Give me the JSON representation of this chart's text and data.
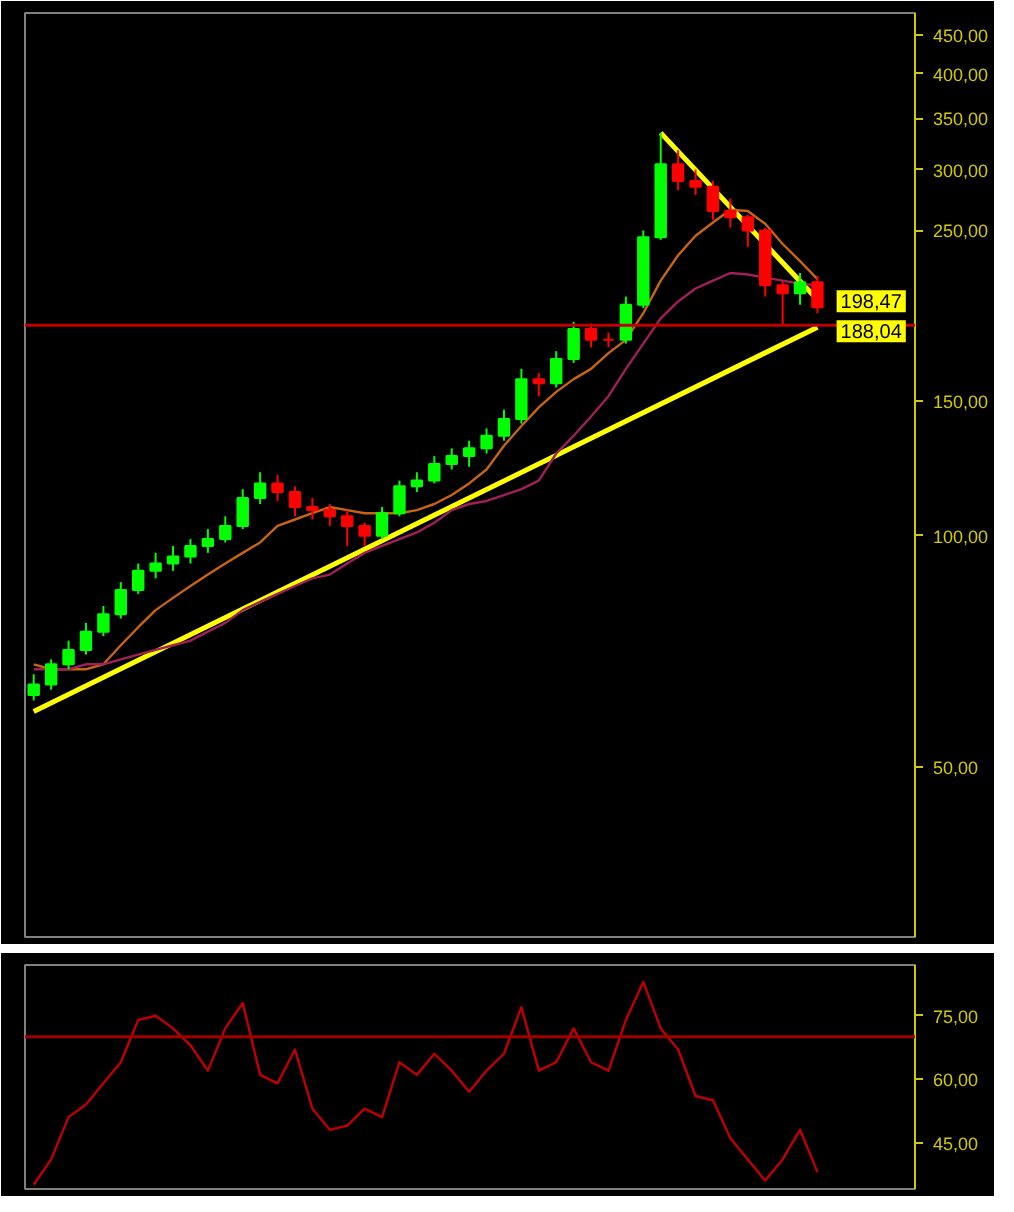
{
  "chart_data": [
    {
      "type": "candlestick",
      "categories": [
        null,
        null,
        null,
        null,
        null,
        null,
        null,
        null,
        null,
        null,
        null,
        null,
        null,
        null,
        null,
        null,
        null,
        null,
        null,
        null,
        null,
        null,
        null,
        null,
        null,
        null,
        null,
        null,
        null,
        null,
        null,
        null,
        null,
        null,
        null,
        null,
        null,
        null,
        null,
        null,
        null,
        null,
        null,
        null,
        null,
        null
      ],
      "ohlc": [
        [
          62,
          66,
          61,
          64
        ],
        [
          64,
          69,
          63,
          68
        ],
        [
          68,
          73,
          67,
          71
        ],
        [
          71,
          77,
          70,
          75
        ],
        [
          75,
          81,
          74,
          79
        ],
        [
          79,
          87,
          78,
          85
        ],
        [
          85,
          92,
          84,
          90
        ],
        [
          90,
          95,
          88,
          92
        ],
        [
          92,
          97,
          90,
          94
        ],
        [
          94,
          99,
          92,
          97
        ],
        [
          97,
          102,
          95,
          99
        ],
        [
          99,
          106,
          98,
          103
        ],
        [
          103,
          115,
          102,
          112
        ],
        [
          112,
          121,
          110,
          117
        ],
        [
          117,
          120,
          111,
          114
        ],
        [
          114,
          116,
          106,
          109
        ],
        [
          109,
          112,
          105,
          108
        ],
        [
          108,
          110,
          103,
          106
        ],
        [
          106,
          108,
          97,
          103
        ],
        [
          103,
          104,
          97,
          100
        ],
        [
          100,
          109,
          99,
          107
        ],
        [
          107,
          118,
          106,
          116
        ],
        [
          116,
          121,
          114,
          118
        ],
        [
          118,
          127,
          117,
          124
        ],
        [
          124,
          130,
          122,
          127
        ],
        [
          127,
          133,
          123,
          130
        ],
        [
          130,
          138,
          128,
          135
        ],
        [
          135,
          146,
          133,
          142
        ],
        [
          142,
          165,
          140,
          160
        ],
        [
          160,
          163,
          152,
          158
        ],
        [
          158,
          174,
          156,
          170
        ],
        [
          170,
          190,
          168,
          186
        ],
        [
          186,
          189,
          176,
          180
        ],
        [
          180,
          184,
          176,
          180
        ],
        [
          180,
          205,
          178,
          200
        ],
        [
          200,
          250,
          198,
          245
        ],
        [
          245,
          335,
          243,
          305
        ],
        [
          305,
          318,
          282,
          290
        ],
        [
          290,
          300,
          278,
          285
        ],
        [
          285,
          290,
          258,
          265
        ],
        [
          265,
          275,
          252,
          260
        ],
        [
          260,
          262,
          238,
          250
        ],
        [
          250,
          252,
          205,
          212
        ],
        [
          212,
          215,
          188,
          207
        ],
        [
          207,
          220,
          200,
          214
        ],
        [
          214,
          218,
          195,
          198.47
        ]
      ],
      "colors": [
        "#00ff00",
        "#00ff00",
        "#00ff00",
        "#00ff00",
        "#00ff00",
        "#00ff00",
        "#00ff00",
        "#00ff00",
        "#00ff00",
        "#00ff00",
        "#00ff00",
        "#00ff00",
        "#00ff00",
        "#00ff00",
        "#ff0000",
        "#ff0000",
        "#ff0000",
        "#ff0000",
        "#ff0000",
        "#ff0000",
        "#00ff00",
        "#00ff00",
        "#00ff00",
        "#00ff00",
        "#00ff00",
        "#00ff00",
        "#00ff00",
        "#00ff00",
        "#00ff00",
        "#ff0000",
        "#00ff00",
        "#00ff00",
        "#ff0000",
        "#ff0000",
        "#00ff00",
        "#00ff00",
        "#00ff00",
        "#ff0000",
        "#ff0000",
        "#ff0000",
        "#ff0000",
        "#ff0000",
        "#ff0000",
        "#ff0000",
        "#00ff00",
        "#ff0000"
      ],
      "series": [
        {
          "type": "line",
          "color": "#c86414",
          "values": [
            68,
            67,
            67,
            67,
            68,
            72,
            76,
            80,
            83,
            86,
            89,
            92,
            95,
            98,
            103,
            105,
            107,
            109,
            108,
            107,
            107,
            107,
            108,
            110,
            113,
            117,
            122,
            131,
            139,
            147,
            154,
            160,
            165,
            173,
            180,
            195,
            215,
            232,
            246,
            256,
            266,
            265,
            255,
            240,
            228,
            216
          ]
        },
        {
          "type": "line",
          "color": "#a0205a",
          "values": [
            67,
            67,
            67,
            68,
            68,
            69,
            70,
            71,
            72,
            73,
            75,
            77,
            80,
            82,
            84,
            86,
            88,
            89,
            92,
            95,
            97,
            99,
            101,
            104,
            108,
            110,
            111,
            113,
            115,
            118,
            128,
            135,
            143,
            152,
            165,
            178,
            192,
            202,
            210,
            215,
            220,
            219,
            217,
            215,
            213,
            212
          ]
        },
        {
          "type": "line",
          "color": "#ffff00",
          "values": [
            59,
            null,
            null,
            null,
            null,
            null,
            null,
            null,
            null,
            null,
            null,
            null,
            null,
            null,
            null,
            null,
            null,
            null,
            null,
            null,
            null,
            null,
            null,
            null,
            null,
            null,
            null,
            null,
            null,
            null,
            null,
            null,
            null,
            null,
            null,
            null,
            null,
            null,
            null,
            null,
            null,
            null,
            null,
            null,
            null,
            187
          ]
        },
        {
          "type": "line",
          "color": "#ffff00",
          "values": [
            null,
            null,
            null,
            null,
            null,
            null,
            null,
            null,
            null,
            null,
            null,
            null,
            null,
            null,
            null,
            null,
            null,
            null,
            null,
            null,
            null,
            null,
            null,
            null,
            null,
            null,
            null,
            null,
            null,
            null,
            null,
            null,
            null,
            null,
            null,
            null,
            335,
            null,
            null,
            null,
            null,
            null,
            null,
            null,
            null,
            203
          ]
        }
      ],
      "log": true,
      "ylim": [
        30,
        480
      ],
      "yticks": [
        {
          "value": 50,
          "label": "50,00"
        },
        {
          "value": 100,
          "label": "100,00"
        },
        {
          "value": 150,
          "label": "150,00"
        },
        {
          "value": 250,
          "label": "250,00"
        },
        {
          "value": 300,
          "label": "300,00"
        },
        {
          "value": 350,
          "label": "350,00"
        },
        {
          "value": 400,
          "label": "400,00"
        },
        {
          "value": 450,
          "label": "450,00"
        }
      ],
      "ref_lines": [
        {
          "axis": "y",
          "value": 188.04,
          "label": "188,04",
          "color": "#c00000"
        }
      ],
      "annotations": [
        "198,47"
      ],
      "tick_labels": "y"
    },
    {
      "type": "line",
      "categories": [
        null,
        null,
        null,
        null,
        null,
        null,
        null,
        null,
        null,
        null,
        null,
        null,
        null,
        null,
        null,
        null,
        null,
        null,
        null,
        null,
        null,
        null,
        null,
        null,
        null,
        null,
        null,
        null,
        null,
        null,
        null,
        null,
        null,
        null,
        null,
        null,
        null,
        null,
        null,
        null,
        null,
        null,
        null,
        null,
        null,
        null
      ],
      "series": [
        {
          "color": "#c00000",
          "values": [
            35,
            41,
            51,
            54,
            59,
            64,
            74,
            75,
            72,
            68,
            62,
            72,
            78,
            61,
            59,
            67,
            53,
            48,
            49,
            53,
            51,
            64,
            61,
            66,
            62,
            57,
            62,
            66,
            77,
            62,
            64,
            72,
            64,
            62,
            74,
            83,
            72,
            67,
            56,
            55,
            46,
            41,
            36,
            41,
            48,
            38
          ]
        }
      ],
      "ylim": [
        34,
        87
      ],
      "yticks": [
        {
          "value": 45,
          "label": "45,00"
        },
        {
          "value": 60,
          "label": "60,00"
        },
        {
          "value": 75,
          "label": "75,00"
        }
      ],
      "ref_lines": [
        {
          "axis": "y",
          "value": 70,
          "color": "#a00000"
        }
      ],
      "tick_labels": "y"
    }
  ]
}
